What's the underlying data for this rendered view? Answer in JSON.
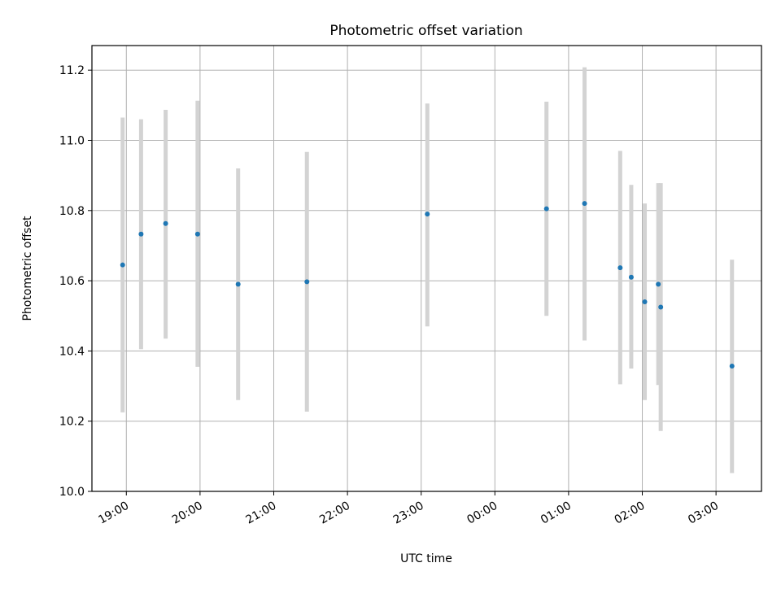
{
  "chart_data": {
    "type": "scatter",
    "title": "Photometric offset variation",
    "xlabel": "UTC time",
    "ylabel": "Photometric offset",
    "grid": true,
    "xlim": [
      "18:32",
      "03:37"
    ],
    "ylim": [
      10.0,
      11.27
    ],
    "xticks": [
      "19:00",
      "20:00",
      "21:00",
      "22:00",
      "23:00",
      "00:00",
      "01:00",
      "02:00",
      "03:00"
    ],
    "yticks": [
      "10.0",
      "10.2",
      "10.4",
      "10.6",
      "10.8",
      "11.0",
      "11.2"
    ],
    "colors": {
      "point": "#1f77b4",
      "errorbar": "#d3d3d3",
      "grid": "#b0b0b0"
    },
    "series": [
      {
        "points": [
          {
            "x": "18:57",
            "y": 10.645,
            "ylow": 10.225,
            "yhigh": 11.065
          },
          {
            "x": "19:12",
            "y": 10.733,
            "ylow": 10.405,
            "yhigh": 11.06
          },
          {
            "x": "19:32",
            "y": 10.763,
            "ylow": 10.435,
            "yhigh": 11.087
          },
          {
            "x": "19:58",
            "y": 10.733,
            "ylow": 10.355,
            "yhigh": 11.113
          },
          {
            "x": "20:31",
            "y": 10.59,
            "ylow": 10.26,
            "yhigh": 10.92
          },
          {
            "x": "21:27",
            "y": 10.597,
            "ylow": 10.227,
            "yhigh": 10.967
          },
          {
            "x": "23:05",
            "y": 10.79,
            "ylow": 10.47,
            "yhigh": 11.105
          },
          {
            "x": "00:42",
            "y": 10.805,
            "ylow": 10.5,
            "yhigh": 11.11
          },
          {
            "x": "01:13",
            "y": 10.82,
            "ylow": 10.43,
            "yhigh": 11.208
          },
          {
            "x": "01:42",
            "y": 10.637,
            "ylow": 10.305,
            "yhigh": 10.97
          },
          {
            "x": "01:51",
            "y": 10.61,
            "ylow": 10.35,
            "yhigh": 10.873
          },
          {
            "x": "02:02",
            "y": 10.54,
            "ylow": 10.26,
            "yhigh": 10.82
          },
          {
            "x": "02:13",
            "y": 10.59,
            "ylow": 10.303,
            "yhigh": 10.878
          },
          {
            "x": "02:15",
            "y": 10.525,
            "ylow": 10.172,
            "yhigh": 10.878
          },
          {
            "x": "03:13",
            "y": 10.357,
            "ylow": 10.052,
            "yhigh": 10.66
          }
        ]
      }
    ]
  }
}
